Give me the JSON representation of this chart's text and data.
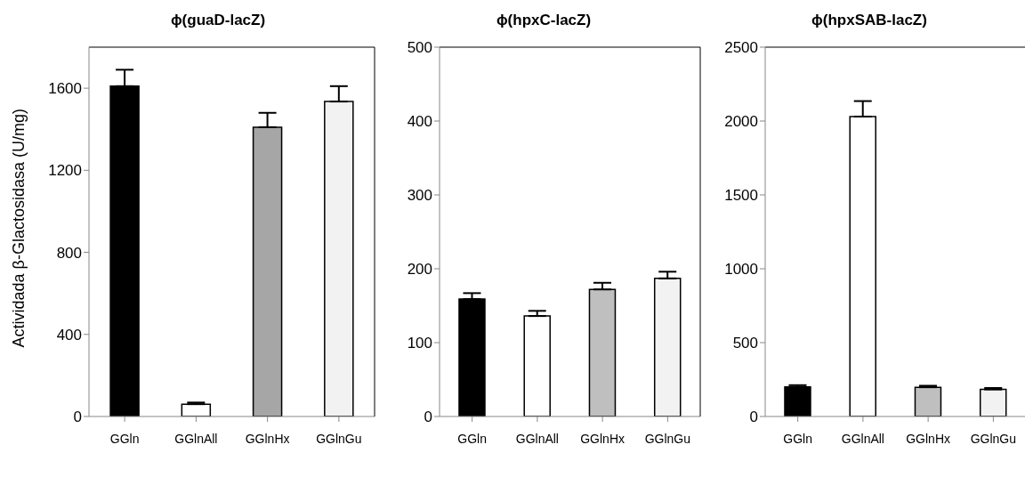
{
  "chart_data": [
    {
      "type": "bar",
      "title": "ϕ(guaD-lacZ)",
      "ylabel": "Actividada β-Glactosidasa (U/mg)",
      "categories": [
        "GGln",
        "GGlnAll",
        "GGlnHx",
        "GGlnGu"
      ],
      "values": [
        1610,
        60,
        1410,
        1535
      ],
      "errors": [
        80,
        8,
        70,
        75
      ],
      "colors": [
        "#000000",
        "#ffffff",
        "#a6a6a6",
        "#f2f2f2"
      ],
      "ylim": [
        0,
        1800
      ],
      "yticks": [
        0,
        400,
        800,
        1200,
        1600
      ],
      "grid": false
    },
    {
      "type": "bar",
      "title": "ϕ(hpxC-lacZ)",
      "categories": [
        "GGln",
        "GGlnAll",
        "GGlnHx",
        "GGlnGu"
      ],
      "values": [
        159,
        136,
        172,
        187
      ],
      "errors": [
        8,
        7,
        9,
        9
      ],
      "colors": [
        "#000000",
        "#ffffff",
        "#bfbfbf",
        "#f2f2f2"
      ],
      "ylim": [
        0,
        500
      ],
      "yticks": [
        0,
        100,
        200,
        300,
        400,
        500
      ],
      "grid": false
    },
    {
      "type": "bar",
      "title": "ϕ(hpxSAB-lacZ)",
      "categories": [
        "GGln",
        "GGlnAll",
        "GGlnHx",
        "GGlnGu"
      ],
      "values": [
        200,
        2030,
        198,
        183
      ],
      "errors": [
        12,
        105,
        10,
        10
      ],
      "colors": [
        "#000000",
        "#ffffff",
        "#bfbfbf",
        "#f2f2f2"
      ],
      "ylim": [
        0,
        2500
      ],
      "yticks": [
        0,
        500,
        1000,
        1500,
        2000,
        2500
      ],
      "grid": false
    }
  ]
}
